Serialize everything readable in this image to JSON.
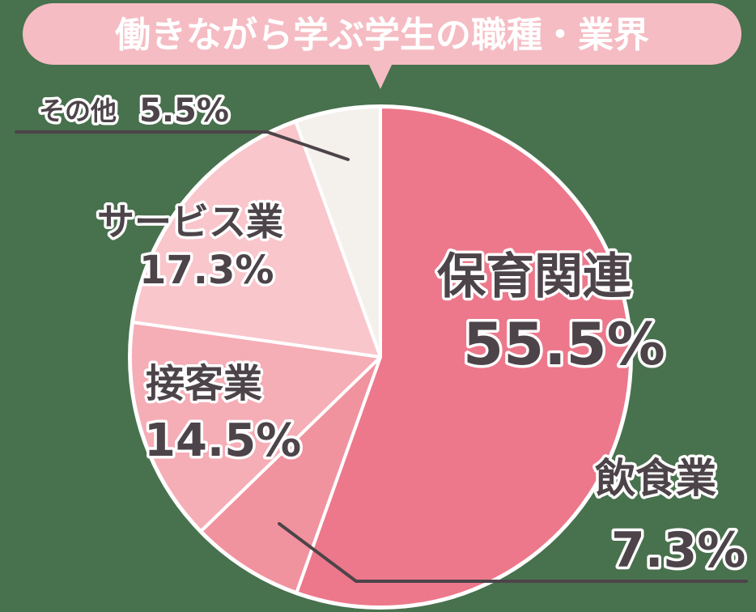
{
  "chart_data": {
    "type": "pie",
    "title": "働きながら学ぶ学生の職種・業界",
    "categories": [
      "保育関連",
      "飲食業",
      "接客業",
      "サービス業",
      "その他"
    ],
    "values": [
      55.5,
      7.3,
      14.5,
      17.3,
      5.5
    ],
    "unit": "%",
    "colors": [
      "#ed788b",
      "#f1929f",
      "#f5adb6",
      "#f9c6cc",
      "#f4f1ed"
    ],
    "start_angle": "12 o'clock, clockwise",
    "legend": "none (direct labels)"
  },
  "colors": {
    "background": "#48714d",
    "title_bubble": "#f5bcc3",
    "label_text": "#4d4449",
    "leader_line": "#4d4449",
    "slice_border": "#ffffff"
  },
  "title": "働きながら学ぶ学生の職種・業界",
  "labels": {
    "hoiku": {
      "name": "保育関連",
      "value": "55.5%"
    },
    "inshoku": {
      "name": "飲食業",
      "value": "7.3%"
    },
    "sekkyaku": {
      "name": "接客業",
      "value": "14.5%"
    },
    "service": {
      "name": "サービス業",
      "value": "17.3%"
    },
    "other": {
      "name": "その他",
      "value": "5.5%"
    }
  }
}
